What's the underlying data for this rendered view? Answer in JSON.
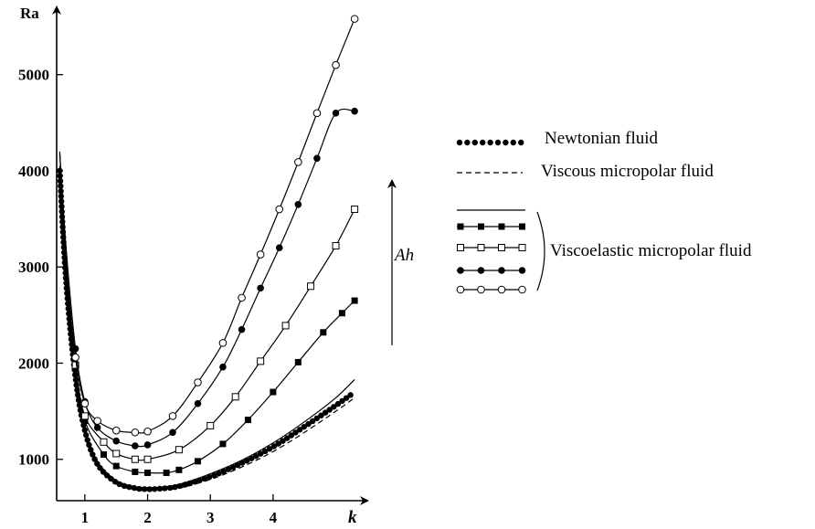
{
  "chart_data": {
    "type": "line",
    "title": "",
    "xlabel": "k",
    "ylabel": "Ra",
    "xlim": [
      0.55,
      5.4
    ],
    "ylim": [
      570,
      5700
    ],
    "x_ticks": [
      "1",
      "2",
      "3",
      "4"
    ],
    "y_ticks": [
      "1000",
      "2000",
      "3000",
      "4000",
      "5000"
    ],
    "arrow_label": "Ah",
    "legend": {
      "position": "right",
      "entries": [
        {
          "label": "Newtonian fluid",
          "style": "dotted-filled-circles"
        },
        {
          "label": "Viscous micropolar fluid",
          "style": "dashed"
        }
      ],
      "group_label": "Viscoelastic micropolar fluid",
      "group_styles": [
        "solid",
        "filled-square-markers",
        "open-square-markers",
        "filled-circle-markers",
        "open-circle-markers"
      ]
    },
    "series": [
      {
        "style": "dotted-filled-circles",
        "color": "#000000",
        "x": [
          0.6,
          0.7,
          0.85,
          1.0,
          1.2,
          1.5,
          1.8,
          2.0,
          2.2,
          2.5,
          3.0,
          3.5,
          4.0,
          4.5,
          5.0,
          5.3
        ],
        "y": [
          4000,
          2850,
          1850,
          1300,
          950,
          760,
          700,
          690,
          695,
          720,
          820,
          960,
          1130,
          1340,
          1560,
          1700
        ]
      },
      {
        "style": "dashed",
        "color": "#000000",
        "x": [
          0.6,
          0.7,
          0.85,
          1.0,
          1.2,
          1.5,
          1.8,
          2.0,
          2.2,
          2.5,
          3.0,
          3.5,
          4.0,
          4.5,
          5.0,
          5.3
        ],
        "y": [
          3950,
          2800,
          1800,
          1270,
          930,
          745,
          685,
          675,
          680,
          700,
          790,
          920,
          1080,
          1280,
          1500,
          1640
        ]
      },
      {
        "style": "solid",
        "color": "#000000",
        "x": [
          0.6,
          0.7,
          0.85,
          1.0,
          1.2,
          1.5,
          1.8,
          2.0,
          2.2,
          2.5,
          3.0,
          3.5,
          4.0,
          4.5,
          5.0,
          5.3
        ],
        "y": [
          4200,
          2950,
          1900,
          1330,
          980,
          780,
          715,
          705,
          710,
          740,
          850,
          990,
          1170,
          1390,
          1640,
          1830
        ]
      },
      {
        "style": "filled-square-markers",
        "color": "#000000",
        "x": [
          0.6,
          0.7,
          0.85,
          1.0,
          1.3,
          1.5,
          1.8,
          2.0,
          2.3,
          2.5,
          2.8,
          3.2,
          3.6,
          4.0,
          4.4,
          4.8,
          5.1,
          5.3
        ],
        "y": [
          3750,
          2870,
          1950,
          1400,
          1050,
          930,
          870,
          860,
          860,
          890,
          980,
          1160,
          1410,
          1700,
          2010,
          2320,
          2520,
          2650
        ]
      },
      {
        "style": "open-square-markers",
        "color": "#000000",
        "x": [
          0.6,
          0.7,
          0.85,
          1.0,
          1.3,
          1.5,
          1.8,
          2.0,
          2.5,
          3.0,
          3.4,
          3.8,
          4.2,
          4.6,
          5.0,
          5.3
        ],
        "y": [
          3780,
          2880,
          1980,
          1450,
          1180,
          1060,
          1000,
          1000,
          1100,
          1350,
          1650,
          2020,
          2390,
          2800,
          3220,
          3600
        ]
      },
      {
        "style": "filled-circle-markers",
        "color": "#000000",
        "x": [
          0.6,
          0.7,
          0.85,
          1.0,
          1.2,
          1.5,
          1.8,
          2.0,
          2.4,
          2.8,
          3.2,
          3.5,
          3.8,
          4.1,
          4.4,
          4.7,
          5.0,
          5.3
        ],
        "y": [
          4180,
          3200,
          2150,
          1600,
          1330,
          1190,
          1140,
          1150,
          1280,
          1580,
          1960,
          2350,
          2780,
          3200,
          3650,
          4130,
          4600,
          4620
        ]
      },
      {
        "style": "open-circle-markers",
        "color": "#000000",
        "x": [
          0.6,
          0.7,
          0.85,
          1.0,
          1.2,
          1.5,
          1.8,
          2.0,
          2.4,
          2.8,
          3.2,
          3.5,
          3.8,
          4.1,
          4.4,
          4.7,
          5.0,
          5.3
        ],
        "y": [
          4050,
          3050,
          2060,
          1580,
          1400,
          1300,
          1280,
          1290,
          1450,
          1800,
          2210,
          2680,
          3130,
          3600,
          4090,
          4600,
          5100,
          5580
        ]
      }
    ]
  }
}
